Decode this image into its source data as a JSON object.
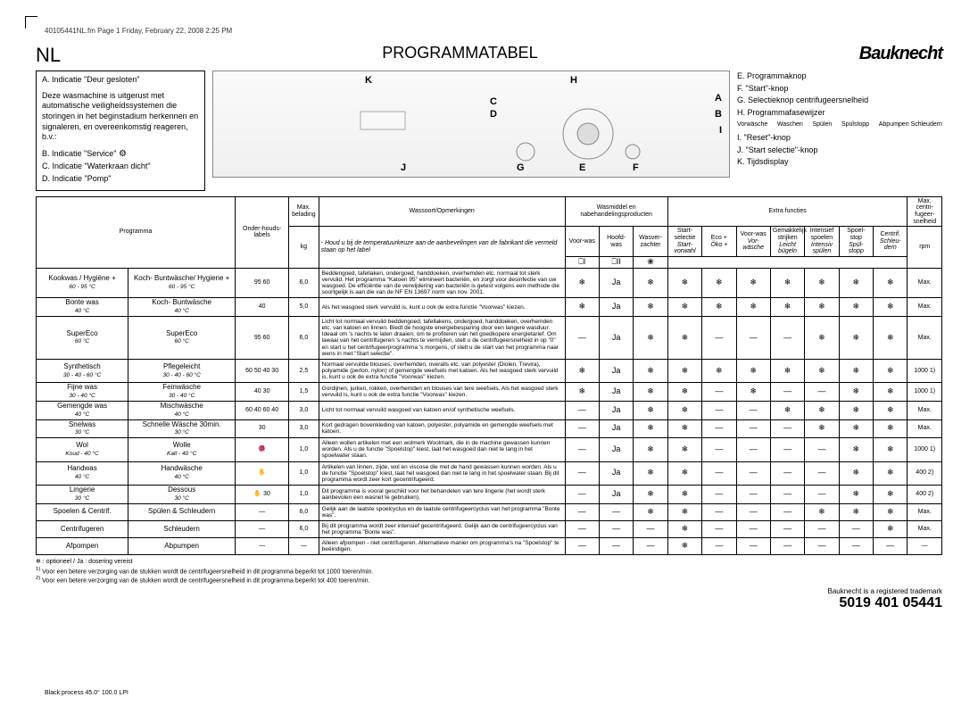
{
  "header_note": "40105441NL.fm  Page 1  Friday, February 22, 2008  2:25 PM",
  "lang": "NL",
  "title": "PROGRAMMATABEL",
  "logo": "Bauknecht",
  "left_box": {
    "indA": "A. Indicatie \"Deur gesloten\"",
    "desc": "Deze wasmachine is uitgerust met automatische veiligheidssystemen die storingen in het beginstadium herkennen en signaleren, en overeenkomstig reageren, b.v.:",
    "indB": "B. Indicatie \"Service\"",
    "indC": "C. Indicatie \"Waterkraan dicht\"",
    "indD": "D. Indicatie \"Pomp\""
  },
  "panel_letters": {
    "K": "K",
    "H": "H",
    "C": "C",
    "D": "D",
    "A": "A",
    "B": "B",
    "I": "I",
    "J": "J",
    "G": "G",
    "E": "E",
    "F": "F"
  },
  "right_legend": {
    "E": "E. Programmaknop",
    "F": "F. \"Start\"-knop",
    "G": "G. Selectieknop centrifugeersnelheid",
    "H": "H. Programmafasewijzer",
    "phases": [
      "Vorwäsche",
      "Waschen",
      "Spülen",
      "Spülstopp",
      "Abpumpen Schleudern"
    ],
    "I": "I. \"Reset\"-knop",
    "J": "J. \"Start selectie\"-knop",
    "K": "K. Tijdsdisplay"
  },
  "thead": {
    "prog": "Programma",
    "labels": "Onder-houds-labels",
    "load_h1": "Max. belading",
    "load_h2": "kg",
    "remark_h1": "Wassoort/Opmerkingen",
    "remark_h2": "- Houd u bij de temperatuurkeuze aan de aanbevelingen van de fabrikant die vermeld staan op het label",
    "wash_h": "Wasmiddel en nabehandelingsproducten",
    "wash_c1": "Voor-was",
    "wash_c2": "Hoofd-was",
    "wash_c3": "Wasver-zachter",
    "extra_h": "Extra functies",
    "extra_c1": "Start-selectie",
    "extra_c1b": "Start-vorwahl",
    "extra_c2": "Eco +",
    "extra_c2b": "Öko +",
    "extra_c3": "Voor-was",
    "extra_c3b": "Vor-wäsche",
    "extra_c4": "Gemakkelijk strijken",
    "extra_c4b": "Leicht bügeln",
    "extra_c5": "Intensief spoelen",
    "extra_c5b": "Intensiv spülen",
    "extra_c6": "Spoel-stop",
    "extra_c6b": "Spül-stopp",
    "extra_c7": "Centrif.",
    "extra_c7b": "Schleu-dern",
    "spin_h": "Max. centri-fugeer-snelheid",
    "spin_h2": "rpm"
  },
  "rows": [
    {
      "p1": "Kookwas / Hygiëne +",
      "p1s": "60 - 95 °C",
      "p2": "Koch- Buntwäsche/ Hygiene +",
      "p2s": "60 - 95 °C",
      "lbl": "95 60",
      "kg": "6,0",
      "rem": "Beddengoed, tafellaken, ondergoed, handdoeken, overhemden etc. normaal tot sterk vervuild. Het programma \"Katoen 95\" elimineert bacteriën, en zorgt voor desinfectie van uw wasgoed. De efficiëntie van de verwijdering van bacteriën is getest volgens een methode die soortgelijk is aan die van de NF EN 13697 norm van nov. 2001.",
      "c": [
        "❄",
        "Ja",
        "❄",
        "❄",
        "❄",
        "❄",
        "❄",
        "❄",
        "❄",
        "❄"
      ],
      "spin": "Max."
    },
    {
      "p1": "Bonte was",
      "p1s": "40 °C",
      "p2": "Koch- Buntwäsche",
      "p2s": "40 °C",
      "lbl": "40",
      "kg": "5,0",
      "rem": "Als het wasgoed sterk vervuild is, kunt u ook de extra functie \"Voorwas\" kiezen.",
      "c": [
        "❄",
        "Ja",
        "❄",
        "❄",
        "❄",
        "❄",
        "❄",
        "❄",
        "❄",
        "❄"
      ],
      "spin": "Max."
    },
    {
      "p1": "SuperEco",
      "p1s": "60 °C",
      "p2": "SuperEco",
      "p2s": "60 °C",
      "lbl": "95 60",
      "kg": "6,0",
      "rem": "Licht tot normaal vervuild beddengoed, tafellakens, ondergoed, handdoeken, overhemden etc. van katoen en linnen. Biedt de hoogste energiebesparing door een langere wasduur. Ideaal om 's nachts te laten draaien, om te profiteren van het goedkopere energietarief. Om lawaai van het centrifugeren 's nachts te vermijden, stelt u de centrifugeersnelheid in op \"0\" en start u het centrifugeerprogramma 's morgens, of stelt u de start van het programma naar wens in met \"Start selectie\".",
      "c": [
        "—",
        "Ja",
        "❄",
        "❄",
        "—",
        "—",
        "—",
        "❄",
        "❄",
        "❄"
      ],
      "spin": "Max."
    },
    {
      "p1": "Synthetisch",
      "p1s": "30 - 40 - 60 °C",
      "p2": "Pflegeleicht",
      "p2s": "30 - 40 - 60 °C",
      "lbl": "60 50 40 30",
      "kg": "2,5",
      "rem": "Normaal vervuilde blouses, overhemden, overalls etc. van polyester (Diolen, Trevira), polyamide (perlon, nylon) of gemengde weefsels met katoen. Als het wasgoed sterk vervuild is, kunt u ook de extra functie \"Voorwas\" kiezen.",
      "c": [
        "❄",
        "Ja",
        "❄",
        "❄",
        "❄",
        "❄",
        "❄",
        "❄",
        "❄",
        "❄"
      ],
      "spin": "1000 1)"
    },
    {
      "p1": "Fijne was",
      "p1s": "30 - 40 °C",
      "p2": "Feinwäsche",
      "p2s": "30 - 40 °C",
      "lbl": "40 30",
      "kg": "1,5",
      "rem": "Gordijnen, jurken, rokken, overhemden en blouses van tere weefsels. Als het wasgoed sterk vervuild is, kunt u ook de extra functie \"Voorwas\" kiezen.",
      "c": [
        "❄",
        "Ja",
        "❄",
        "❄",
        "—",
        "❄",
        "—",
        "—",
        "❄",
        "❄"
      ],
      "spin": "1000 1)"
    },
    {
      "p1": "Gemengde was",
      "p1s": "40 °C",
      "p2": "Mischwäsche",
      "p2s": "40 °C",
      "lbl": "60 40 60 40",
      "kg": "3,0",
      "rem": "Licht tot normaal vervuild wasgoed van katoen en/of synthetische weefsels.",
      "c": [
        "—",
        "Ja",
        "❄",
        "❄",
        "—",
        "—",
        "❄",
        "❄",
        "❄",
        "❄"
      ],
      "spin": "Max."
    },
    {
      "p1": "Snelwas",
      "p1s": "30 °C",
      "p2": "Schnelle Wäsche 30min.",
      "p2s": "30 °C",
      "lbl": "30",
      "kg": "3,0",
      "rem": "Kort gedragen bovenkleding van katoen, polyester, polyamide en gemengde weefsels met katoen.",
      "c": [
        "—",
        "Ja",
        "❄",
        "❄",
        "—",
        "—",
        "—",
        "❄",
        "❄",
        "❄"
      ],
      "spin": "Max."
    },
    {
      "p1": "Wol",
      "p1s": "Koud - 40 °C",
      "p2": "Wolle",
      "p2s": "Kalt - 40 °C",
      "lbl": "🧶",
      "kg": "1,0",
      "rem": "Alleen wollen artikelen met een wolmerk Woolmark, die in de machine gewassen kunnen worden. Als u de functie \"Spoelstop\" kiest, laat het wasgoed dan niet te lang in het spoelwater staan.",
      "c": [
        "—",
        "Ja",
        "❄",
        "❄",
        "—",
        "—",
        "—",
        "—",
        "❄",
        "❄"
      ],
      "spin": "1000 1)"
    },
    {
      "p1": "Handwas",
      "p1s": "40 °C",
      "p2": "Handwäsche",
      "p2s": "40 °C",
      "lbl": "✋",
      "kg": "1,0",
      "rem": "Artikelen van linnen, zijde, wol en viscose die met de hand gewassen kunnen worden. Als u de functie \"Spoelstop\" kiest, laat het wasgoed dan niet te lang in het spoelwater staan. Bij dit programma wordt zeer kort gecentrifugeerd.",
      "c": [
        "—",
        "Ja",
        "❄",
        "❄",
        "—",
        "—",
        "—",
        "—",
        "❄",
        "❄"
      ],
      "spin": "400 2)"
    },
    {
      "p1": "Lingerie",
      "p1s": "30 °C",
      "p2": "Dessous",
      "p2s": "30 °C",
      "lbl": "✋ 30",
      "kg": "1,0",
      "rem": "Dit programma is vooral geschikt voor het behandelen van tere lingerie (het wordt sterk aanbevolen een wasnet te gebruiken).",
      "c": [
        "—",
        "Ja",
        "❄",
        "❄",
        "—",
        "—",
        "—",
        "—",
        "❄",
        "❄"
      ],
      "spin": "400 2)"
    },
    {
      "p1": "Spoelen & Centrif.",
      "p1s": "",
      "p2": "Spülen & Schleudern",
      "p2s": "",
      "lbl": "—",
      "kg": "6,0",
      "rem": "Gelijk aan de laatste spoelcyclus en de laatste centrifugeercyclus van het programma \"Bonte was\".",
      "c": [
        "—",
        "—",
        "❄",
        "❄",
        "—",
        "—",
        "—",
        "❄",
        "❄",
        "❄"
      ],
      "spin": "Max."
    },
    {
      "p1": "Centrifugeren",
      "p1s": "",
      "p2": "Schleudern",
      "p2s": "",
      "lbl": "—",
      "kg": "6,0",
      "rem": "Bij dit programma wordt zeer intensief gecentrifugeerd. Gelijk aan de centrifugeercyclus van het programma \"Bonte was\".",
      "c": [
        "—",
        "—",
        "—",
        "❄",
        "—",
        "—",
        "—",
        "—",
        "—",
        "❄"
      ],
      "spin": "Max."
    },
    {
      "p1": "Afpompen",
      "p1s": "",
      "p2": "Abpumpen",
      "p2s": "",
      "lbl": "—",
      "kg": "—",
      "rem": "Alleen afpompen - niet centrifugeren. Alternatieve manier om programma's na \"Spoelstop\" te beëindigen.",
      "c": [
        "—",
        "—",
        "—",
        "❄",
        "—",
        "—",
        "—",
        "—",
        "—",
        "—"
      ],
      "spin": "—"
    }
  ],
  "footnotes": {
    "star": "❄ : optioneel / Ja : dosering vereist",
    "f1": "Voor een betere verzorging van de stukken wordt de centrifugeersnelheid in dit programma beperkt tot 1000 toeren/min.",
    "f2": "Voor een betere verzorging van de stukken wordt de centrifugeersnelheid in dit programma beperkt tot 400 toeren/min."
  },
  "bottom": {
    "trademark": "Bauknecht is a registered trademark",
    "code": "5019 401 05441"
  },
  "process": "Black process 45.0° 100.0 LPI"
}
